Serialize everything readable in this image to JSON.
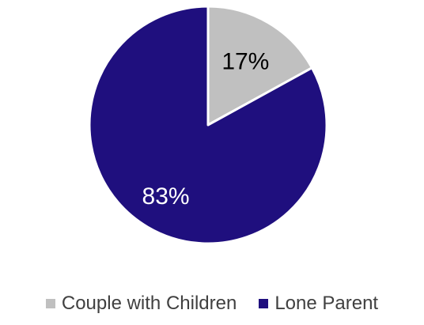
{
  "chart_data": {
    "type": "pie",
    "title": "",
    "slices": [
      {
        "name": "Couple with Children",
        "value": 17,
        "label": "17%",
        "color": "#c0c0c0",
        "label_color": "#000000"
      },
      {
        "name": "Lone Parent",
        "value": 83,
        "label": "83%",
        "color": "#1f0f7e",
        "label_color": "#ffffff"
      }
    ],
    "start": "12 o'clock",
    "direction": "clockwise",
    "legend_position": "bottom"
  }
}
